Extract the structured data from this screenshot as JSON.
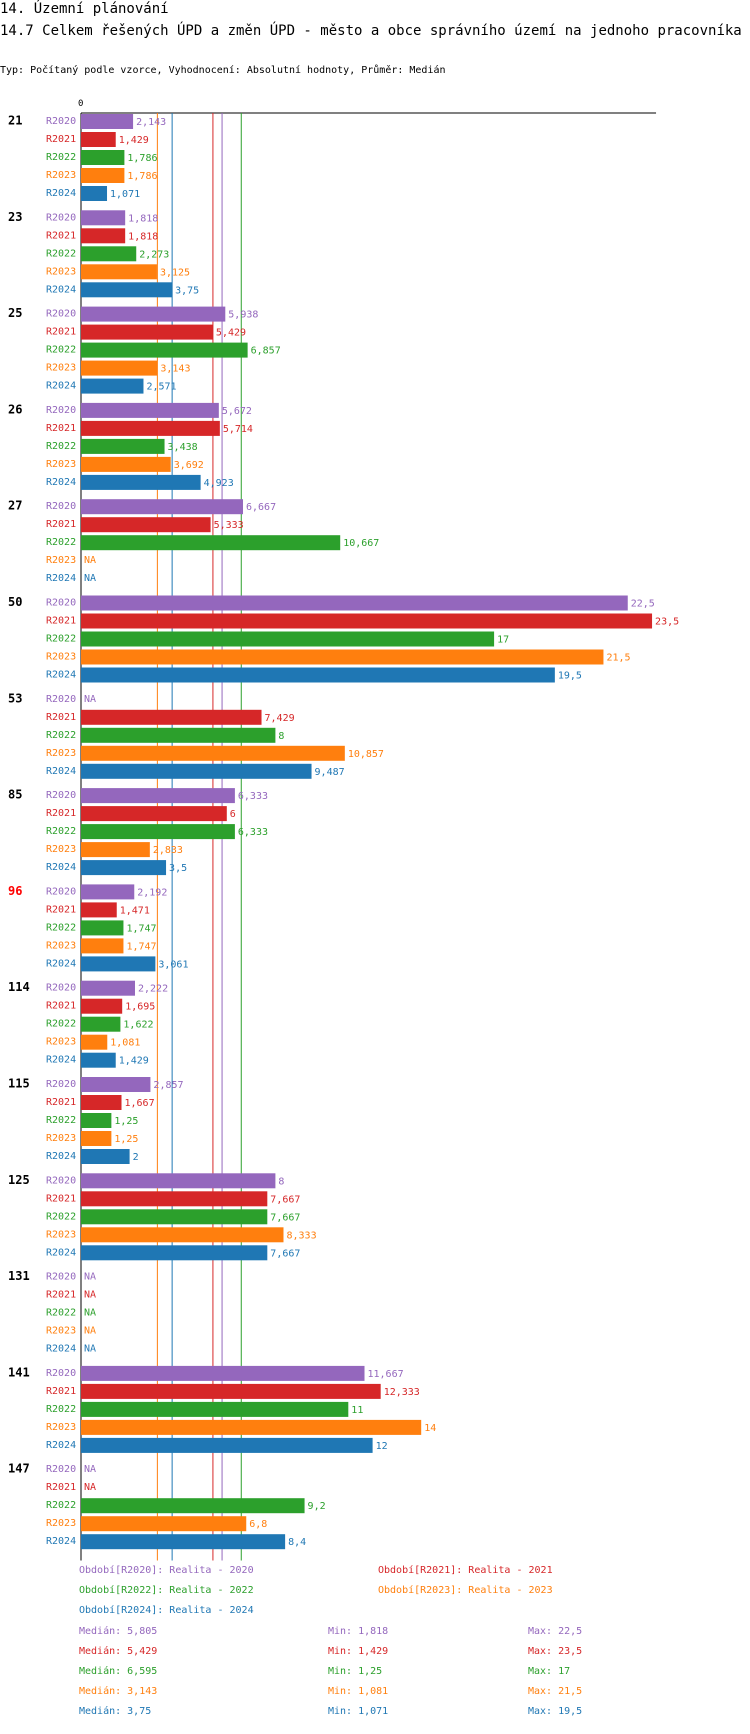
{
  "header": {
    "section": "14. Územní plánování",
    "title": "14.7 Celkem řešených ÚPD a změn ÚPD - město a obce správního území  na jednoho pracovníka",
    "subtitle": "Typ: Počítaný podle vzorce, Vyhodnocení: Absolutní hodnoty, Průměr: Medián"
  },
  "chart_data": {
    "type": "bar",
    "orientation": "horizontal",
    "axis_zero_label": "0",
    "xlim": [
      0,
      23.5
    ],
    "categories": [
      "21",
      "23",
      "25",
      "26",
      "27",
      "50",
      "53",
      "85",
      "96",
      "114",
      "115",
      "125",
      "131",
      "141",
      "147"
    ],
    "highlight_category": "96",
    "series": [
      {
        "name": "R2020",
        "color": "#9467bd",
        "values": [
          2.143,
          1.818,
          5.938,
          5.672,
          6.667,
          22.5,
          null,
          6.333,
          2.192,
          2.222,
          2.857,
          8,
          null,
          11.667,
          null
        ],
        "labels": [
          "2,143",
          "1,818",
          "5,938",
          "5,672",
          "6,667",
          "22,5",
          "NA",
          "6,333",
          "2,192",
          "2,222",
          "2,857",
          "8",
          "NA",
          "11,667",
          "NA"
        ]
      },
      {
        "name": "R2021",
        "color": "#d62728",
        "values": [
          1.429,
          1.818,
          5.429,
          5.714,
          5.333,
          23.5,
          7.429,
          6,
          1.471,
          1.695,
          1.667,
          7.667,
          null,
          12.333,
          null
        ],
        "labels": [
          "1,429",
          "1,818",
          "5,429",
          "5,714",
          "5,333",
          "23,5",
          "7,429",
          "6",
          "1,471",
          "1,695",
          "1,667",
          "7,667",
          "NA",
          "12,333",
          "NA"
        ]
      },
      {
        "name": "R2022",
        "color": "#2ca02c",
        "values": [
          1.786,
          2.273,
          6.857,
          3.438,
          10.667,
          17,
          8,
          6.333,
          1.747,
          1.622,
          1.25,
          7.667,
          null,
          11,
          9.2
        ],
        "labels": [
          "1,786",
          "2,273",
          "6,857",
          "3,438",
          "10,667",
          "17",
          "8",
          "6,333",
          "1,747",
          "1,622",
          "1,25",
          "7,667",
          "NA",
          "11",
          "9,2"
        ]
      },
      {
        "name": "R2023",
        "color": "#ff7f0e",
        "values": [
          1.786,
          3.125,
          3.143,
          3.692,
          null,
          21.5,
          10.857,
          2.833,
          1.747,
          1.081,
          1.25,
          8.333,
          null,
          14,
          6.8
        ],
        "labels": [
          "1,786",
          "3,125",
          "3,143",
          "3,692",
          "NA",
          "21,5",
          "10,857",
          "2,833",
          "1,747",
          "1,081",
          "1,25",
          "8,333",
          "NA",
          "14",
          "6,8"
        ]
      },
      {
        "name": "R2024",
        "color": "#1f77b4",
        "values": [
          1.071,
          3.75,
          2.571,
          4.923,
          null,
          19.5,
          9.487,
          3.5,
          3.061,
          1.429,
          2,
          7.667,
          null,
          12,
          8.4
        ],
        "labels": [
          "1,071",
          "3,75",
          "2,571",
          "4,923",
          "NA",
          "19,5",
          "9,487",
          "3,5",
          "3,061",
          "1,429",
          "2",
          "7,667",
          "NA",
          "12",
          "8,4"
        ]
      }
    ],
    "medians": [
      5.805,
      5.429,
      6.595,
      3.143,
      3.75
    ],
    "legend": [
      {
        "text": "Období[R2020]: Realita - 2020",
        "color": "#9467bd"
      },
      {
        "text": "Období[R2021]: Realita - 2021",
        "color": "#d62728"
      },
      {
        "text": "Období[R2022]: Realita - 2022",
        "color": "#2ca02c"
      },
      {
        "text": "Období[R2023]: Realita - 2023",
        "color": "#ff7f0e"
      },
      {
        "text": "Období[R2024]: Realita - 2024",
        "color": "#1f77b4"
      }
    ],
    "stats": [
      {
        "median": "Medián: 5,805",
        "min": "Min: 1,818",
        "max": "Max: 22,5",
        "color": "#9467bd"
      },
      {
        "median": "Medián: 5,429",
        "min": "Min: 1,429",
        "max": "Max: 23,5",
        "color": "#d62728"
      },
      {
        "median": "Medián: 6,595",
        "min": "Min: 1,25",
        "max": "Max: 17",
        "color": "#2ca02c"
      },
      {
        "median": "Medián: 3,143",
        "min": "Min: 1,081",
        "max": "Max: 21,5",
        "color": "#ff7f0e"
      },
      {
        "median": "Medián: 3,75",
        "min": "Min: 1,071",
        "max": "Max: 19,5",
        "color": "#1f77b4"
      }
    ]
  }
}
